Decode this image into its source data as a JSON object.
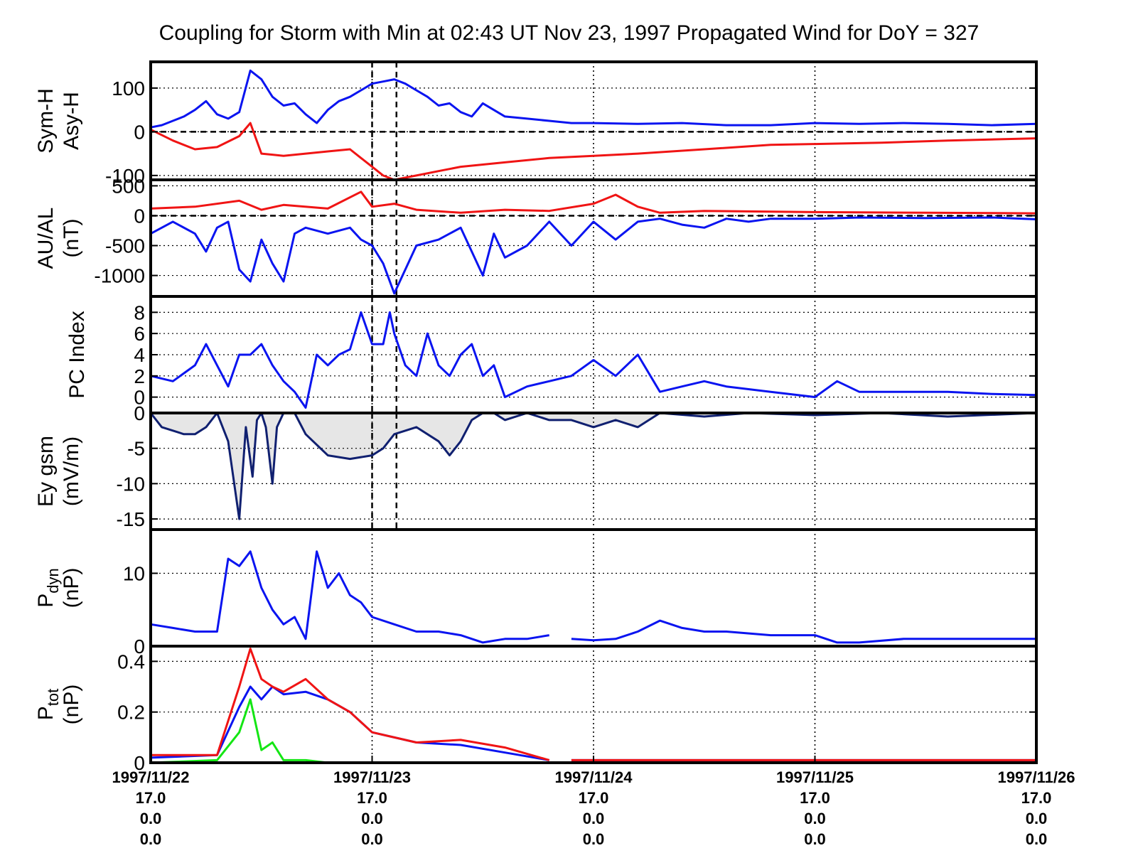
{
  "title": "Coupling for Storm with Min at 02:43 UT Nov 23, 1997  Propagated Wind for DoY = 327",
  "colors": {
    "blue": "#0a14f0",
    "red": "#f01414",
    "green": "#14e614",
    "navy": "#102070",
    "fill": "#e6e6e6",
    "axis": "#000000"
  },
  "x_ticks": [
    {
      "date": "1997/11/22",
      "l2": "17.0",
      "l3": "0.0",
      "l4": "0.0"
    },
    {
      "date": "1997/11/23",
      "l2": "17.0",
      "l3": "0.0",
      "l4": "0.0"
    },
    {
      "date": "1997/11/24",
      "l2": "17.0",
      "l3": "0.0",
      "l4": "0.0"
    },
    {
      "date": "1997/11/25",
      "l2": "17.0",
      "l3": "0.0",
      "l4": "0.0"
    },
    {
      "date": "1997/11/26",
      "l2": "17.0",
      "l3": "0.0",
      "l4": "0.0"
    }
  ],
  "event_lines_day": [
    1.0,
    1.11
  ],
  "chart_data": [
    {
      "type": "line",
      "ylabel": [
        "Sym-H",
        "Asy-H"
      ],
      "ylim": [
        -110,
        160
      ],
      "yticks": [
        100,
        0,
        -100
      ],
      "zero_line": true,
      "series": [
        {
          "color": "blue",
          "x": [
            0,
            0.05,
            0.1,
            0.15,
            0.2,
            0.25,
            0.3,
            0.35,
            0.4,
            0.45,
            0.5,
            0.55,
            0.6,
            0.65,
            0.7,
            0.75,
            0.8,
            0.85,
            0.9,
            0.95,
            1.0,
            1.05,
            1.1,
            1.15,
            1.2,
            1.25,
            1.3,
            1.35,
            1.4,
            1.45,
            1.5,
            1.6,
            1.7,
            1.8,
            1.9,
            2.0,
            2.2,
            2.4,
            2.6,
            2.8,
            3.0,
            3.2,
            3.4,
            3.6,
            3.8,
            4.0
          ],
          "y": [
            10,
            15,
            25,
            35,
            50,
            70,
            40,
            30,
            45,
            140,
            120,
            80,
            60,
            65,
            40,
            20,
            50,
            70,
            80,
            95,
            110,
            115,
            120,
            110,
            95,
            80,
            60,
            65,
            45,
            35,
            65,
            35,
            30,
            25,
            20,
            20,
            18,
            20,
            15,
            15,
            20,
            18,
            20,
            18,
            15,
            18
          ]
        },
        {
          "color": "red",
          "x": [
            0,
            0.1,
            0.2,
            0.3,
            0.4,
            0.45,
            0.5,
            0.6,
            0.7,
            0.8,
            0.9,
            0.95,
            1.0,
            1.05,
            1.1,
            1.2,
            1.3,
            1.4,
            1.5,
            1.6,
            1.8,
            2.0,
            2.2,
            2.5,
            2.8,
            3.0,
            3.3,
            3.6,
            4.0
          ],
          "y": [
            5,
            -20,
            -40,
            -35,
            -10,
            20,
            -50,
            -55,
            -50,
            -45,
            -40,
            -60,
            -80,
            -100,
            -110,
            -100,
            -90,
            -80,
            -75,
            -70,
            -60,
            -55,
            -50,
            -40,
            -30,
            -28,
            -25,
            -20,
            -15
          ]
        }
      ]
    },
    {
      "type": "line",
      "ylabel": [
        "AU/AL",
        "(nT)"
      ],
      "ylim": [
        -1350,
        600
      ],
      "yticks": [
        500,
        0,
        -500,
        -1000
      ],
      "zero_line": true,
      "series": [
        {
          "color": "red",
          "x": [
            0,
            0.2,
            0.4,
            0.5,
            0.6,
            0.8,
            0.95,
            1.0,
            1.1,
            1.2,
            1.4,
            1.6,
            1.8,
            2.0,
            2.1,
            2.2,
            2.3,
            2.5,
            3.0,
            3.5,
            4.0
          ],
          "y": [
            120,
            150,
            250,
            100,
            180,
            120,
            400,
            150,
            200,
            100,
            50,
            100,
            80,
            200,
            350,
            150,
            50,
            80,
            60,
            50,
            40
          ]
        },
        {
          "color": "blue",
          "x": [
            0,
            0.1,
            0.2,
            0.25,
            0.3,
            0.35,
            0.4,
            0.45,
            0.5,
            0.55,
            0.6,
            0.65,
            0.7,
            0.8,
            0.9,
            0.95,
            1.0,
            1.05,
            1.1,
            1.15,
            1.2,
            1.3,
            1.4,
            1.45,
            1.5,
            1.55,
            1.6,
            1.7,
            1.8,
            1.9,
            2.0,
            2.1,
            2.2,
            2.3,
            2.4,
            2.5,
            2.6,
            2.7,
            2.8,
            3.0,
            3.2,
            3.5,
            3.8,
            4.0
          ],
          "y": [
            -300,
            -100,
            -300,
            -600,
            -200,
            -100,
            -900,
            -1100,
            -400,
            -800,
            -1100,
            -300,
            -200,
            -300,
            -200,
            -400,
            -500,
            -800,
            -1300,
            -900,
            -500,
            -400,
            -200,
            -600,
            -1000,
            -300,
            -700,
            -500,
            -100,
            -500,
            -100,
            -400,
            -100,
            -50,
            -150,
            -200,
            -50,
            -100,
            -50,
            -50,
            -30,
            -40,
            -30,
            -60
          ]
        }
      ]
    },
    {
      "type": "line",
      "ylabel": [
        "PC Index"
      ],
      "ylim": [
        -1.5,
        9.5
      ],
      "yticks": [
        8,
        6,
        4,
        2,
        0
      ],
      "series": [
        {
          "color": "blue",
          "x": [
            0,
            0.1,
            0.2,
            0.25,
            0.3,
            0.35,
            0.4,
            0.45,
            0.5,
            0.55,
            0.6,
            0.65,
            0.7,
            0.72,
            0.75,
            0.8,
            0.85,
            0.9,
            0.95,
            1.0,
            1.05,
            1.08,
            1.1,
            1.15,
            1.2,
            1.25,
            1.3,
            1.35,
            1.4,
            1.45,
            1.5,
            1.55,
            1.6,
            1.7,
            1.8,
            1.9,
            2.0,
            2.1,
            2.2,
            2.3,
            2.4,
            2.5,
            2.6,
            2.8,
            3.0,
            3.1,
            3.2,
            3.4,
            3.6,
            3.8,
            4.0
          ],
          "y": [
            2,
            1.5,
            3,
            5,
            3,
            1,
            4,
            4,
            5,
            3,
            1.5,
            0.5,
            -1,
            1,
            4,
            3,
            4,
            4.5,
            8,
            5,
            5,
            8,
            6,
            3,
            2,
            6,
            3,
            2,
            4,
            5,
            2,
            3,
            0,
            1,
            1.5,
            2,
            3.5,
            2,
            4,
            0.5,
            1,
            1.5,
            1,
            0.5,
            0,
            1.5,
            0.5,
            0.5,
            0.5,
            0.3,
            0.2
          ]
        }
      ]
    },
    {
      "type": "area",
      "ylabel": [
        "Ey gsm",
        "(mV/m)"
      ],
      "ylim": [
        -16.5,
        0
      ],
      "yticks": [
        0,
        -5,
        -10,
        -15
      ],
      "series": [
        {
          "color": "navy",
          "x": [
            0,
            0.05,
            0.1,
            0.15,
            0.2,
            0.25,
            0.3,
            0.35,
            0.4,
            0.43,
            0.46,
            0.48,
            0.5,
            0.52,
            0.55,
            0.57,
            0.6,
            0.62,
            0.65,
            0.7,
            0.8,
            0.9,
            1.0,
            1.05,
            1.1,
            1.2,
            1.3,
            1.35,
            1.4,
            1.45,
            1.5,
            1.55,
            1.6,
            1.7,
            1.8,
            1.9,
            2.0,
            2.1,
            2.2,
            2.3,
            2.5,
            2.7,
            3.0,
            3.3,
            3.6,
            4.0
          ],
          "y": [
            0,
            -2,
            -2.5,
            -3,
            -3,
            -2,
            0,
            -4,
            -15,
            -2,
            -9,
            -1,
            0,
            -2,
            -10,
            -2,
            0,
            0,
            0,
            -3,
            -6,
            -6.5,
            -6,
            -5,
            -3,
            -2,
            -4,
            -6,
            -4,
            -1,
            0,
            0,
            -1,
            0,
            -1,
            -1,
            -2,
            -1,
            -2,
            0,
            -0.5,
            0,
            -0.3,
            0,
            -0.5,
            0
          ]
        }
      ]
    },
    {
      "type": "line",
      "ylabel": [
        "P_dyn",
        "(nP)"
      ],
      "ylim": [
        0,
        16
      ],
      "yticks": [
        10,
        0
      ],
      "series": [
        {
          "color": "blue",
          "x": [
            0,
            0.1,
            0.2,
            0.3,
            0.35,
            0.4,
            0.45,
            0.5,
            0.55,
            0.6,
            0.65,
            0.7,
            0.75,
            0.8,
            0.85,
            0.9,
            0.95,
            1.0,
            1.1,
            1.2,
            1.3,
            1.4,
            1.5,
            1.6,
            1.7,
            1.8,
            1.85,
            1.9,
            2.0,
            2.1,
            2.2,
            2.3,
            2.4,
            2.5,
            2.6,
            2.8,
            3.0,
            3.1,
            3.2,
            3.4,
            3.6,
            3.8,
            4.0
          ],
          "y": [
            3,
            2.5,
            2,
            2,
            12,
            11,
            13,
            8,
            5,
            3,
            4,
            1,
            13,
            8,
            10,
            7,
            6,
            4,
            3,
            2,
            2,
            1.5,
            0.5,
            1,
            1,
            1.5,
            null,
            1,
            0.8,
            1,
            2,
            3.5,
            2.5,
            2,
            2,
            1.5,
            1.5,
            0.5,
            0.5,
            1,
            1,
            1,
            1
          ]
        }
      ]
    },
    {
      "type": "line",
      "ylabel": [
        "P_tot",
        "(nP)"
      ],
      "ylim": [
        0,
        0.46
      ],
      "yticks": [
        0.4,
        0.2,
        0
      ],
      "series": [
        {
          "color": "blue",
          "x": [
            0,
            0.3,
            0.4,
            0.45,
            0.5,
            0.55,
            0.6,
            0.7,
            0.8,
            0.9,
            1.0,
            1.2,
            1.4,
            1.6,
            1.8,
            1.85,
            1.9,
            2.5,
            3.0,
            3.5,
            4.0
          ],
          "y": [
            0.02,
            0.03,
            0.22,
            0.3,
            0.25,
            0.3,
            0.27,
            0.28,
            0.25,
            0.2,
            0.12,
            0.08,
            0.07,
            0.04,
            0.01,
            null,
            0.01,
            0.01,
            0.01,
            0.01,
            0.01
          ]
        },
        {
          "color": "red",
          "x": [
            0,
            0.3,
            0.4,
            0.45,
            0.5,
            0.55,
            0.6,
            0.7,
            0.8,
            0.9,
            1.0,
            1.2,
            1.4,
            1.6,
            1.8,
            1.85,
            1.9,
            2.5,
            3.0,
            3.5,
            4.0
          ],
          "y": [
            0.03,
            0.03,
            0.3,
            0.45,
            0.33,
            0.3,
            0.28,
            0.33,
            0.25,
            0.2,
            0.12,
            0.08,
            0.09,
            0.06,
            0.01,
            null,
            0.01,
            0.01,
            0.01,
            0.01,
            0.01
          ]
        },
        {
          "color": "green",
          "x": [
            0,
            0.3,
            0.4,
            0.45,
            0.5,
            0.55,
            0.6,
            0.7,
            0.8,
            1.0,
            1.5,
            2.0,
            3.0,
            4.0
          ],
          "y": [
            0,
            0.01,
            0.12,
            0.25,
            0.05,
            0.08,
            0.01,
            0.01,
            0,
            0,
            0,
            0,
            0,
            0
          ]
        }
      ]
    }
  ]
}
